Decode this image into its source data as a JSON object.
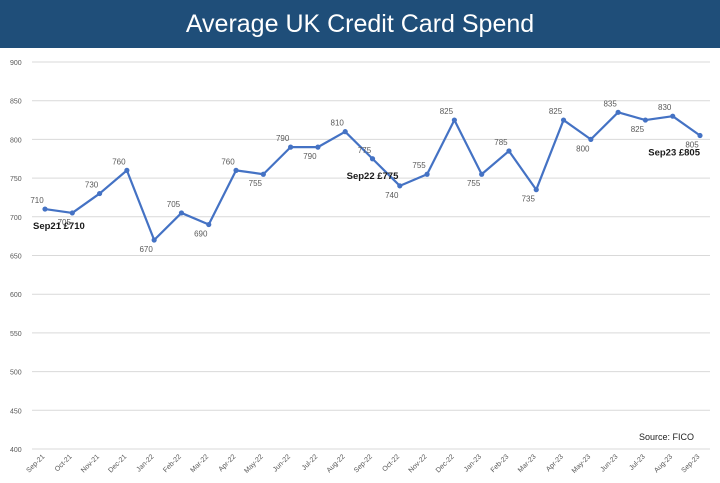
{
  "title": "Average UK Credit Card Spend",
  "source": "Source: FICO",
  "colors": {
    "header": "#1f4e79",
    "line": "#4472c4",
    "grid": "#d9d9d9"
  },
  "chart_data": {
    "type": "line",
    "title": "Average UK Credit Card Spend",
    "xlabel": "",
    "ylabel": "",
    "ylim": [
      400,
      900
    ],
    "yticks": [
      400,
      450,
      500,
      550,
      600,
      650,
      700,
      750,
      800,
      850,
      900
    ],
    "grid": true,
    "categories": [
      "Sep-21",
      "Oct-21",
      "Nov-21",
      "Dec-21",
      "Jan-22",
      "Feb-22",
      "Mar-22",
      "Apr-22",
      "May-22",
      "Jun-22",
      "Jul-22",
      "Aug-22",
      "Sep-22",
      "Oct-22",
      "Nov-22",
      "Dec-22",
      "Jan-23",
      "Feb-23",
      "Mar-23",
      "Apr-23",
      "May-23",
      "Jun-23",
      "Jul-23",
      "Aug-23",
      "Sep-23"
    ],
    "series": [
      {
        "values": [
          710,
          705,
          730,
          760,
          670,
          705,
          690,
          760,
          755,
          790,
          790,
          810,
          775,
          740,
          755,
          825,
          755,
          785,
          735,
          825,
          800,
          835,
          825,
          830,
          805
        ]
      }
    ],
    "annotations": [
      {
        "index": 0,
        "text": "Sep21 £710"
      },
      {
        "index": 12,
        "text": "Sep22 £775"
      },
      {
        "index": 24,
        "text": "Sep23 £805"
      }
    ]
  }
}
